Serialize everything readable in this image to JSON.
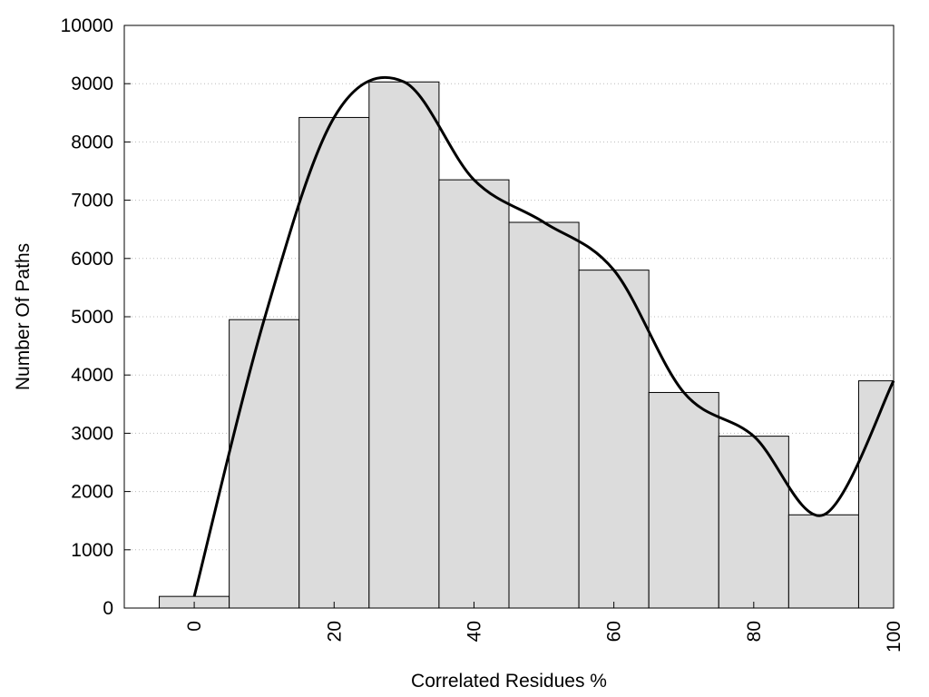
{
  "chart_data": {
    "type": "bar",
    "title": "",
    "xlabel": "Correlated Residues %",
    "ylabel": "Number Of Paths",
    "xlim": [
      -10,
      100
    ],
    "ylim": [
      0,
      10000
    ],
    "bin_width": 10,
    "x_ticks": [
      0,
      20,
      40,
      60,
      80,
      100
    ],
    "y_ticks": [
      0,
      1000,
      2000,
      3000,
      4000,
      5000,
      6000,
      7000,
      8000,
      9000,
      10000
    ],
    "grid": "horizontal dotted",
    "bars": [
      {
        "x": 0,
        "value": 200
      },
      {
        "x": 10,
        "value": 4950
      },
      {
        "x": 20,
        "value": 8420
      },
      {
        "x": 30,
        "value": 9030
      },
      {
        "x": 40,
        "value": 7350
      },
      {
        "x": 50,
        "value": 6620
      },
      {
        "x": 60,
        "value": 5800
      },
      {
        "x": 70,
        "value": 3700
      },
      {
        "x": 80,
        "value": 2950
      },
      {
        "x": 90,
        "value": 1600
      },
      {
        "x": 100,
        "value": 3900
      }
    ],
    "curve": {
      "type": "line",
      "smooth": true,
      "x": [
        0,
        10,
        20,
        30,
        40,
        50,
        60,
        70,
        80,
        90,
        100
      ],
      "y": [
        200,
        4950,
        8420,
        9030,
        7350,
        6620,
        5800,
        3700,
        2950,
        1600,
        3900
      ]
    },
    "colors": {
      "bar_fill": "#dcdcdc",
      "bar_stroke": "#000000",
      "curve": "#000000",
      "grid": "#bbbbbb"
    }
  }
}
